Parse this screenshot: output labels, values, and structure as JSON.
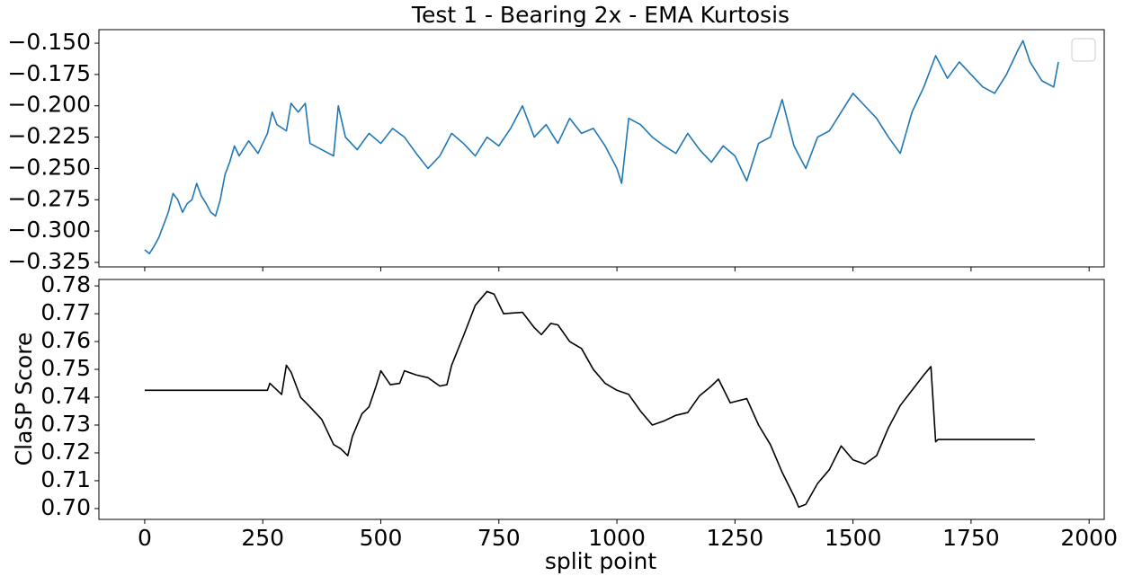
{
  "chart_data": [
    {
      "type": "line",
      "title": "Test 1 - Bearing 2x - EMA Kurtosis",
      "legend": "upper right",
      "sharex": true,
      "x": [
        0,
        10,
        20,
        30,
        40,
        50,
        60,
        70,
        80,
        90,
        100,
        110,
        120,
        130,
        140,
        150,
        160,
        170,
        180,
        190,
        200,
        220,
        240,
        260,
        270,
        280,
        300,
        310,
        325,
        340,
        350,
        375,
        400,
        410,
        425,
        450,
        475,
        500,
        525,
        550,
        575,
        600,
        625,
        650,
        675,
        700,
        725,
        750,
        775,
        800,
        825,
        850,
        875,
        900,
        925,
        950,
        975,
        1000,
        1010,
        1025,
        1050,
        1075,
        1100,
        1125,
        1150,
        1175,
        1200,
        1225,
        1250,
        1275,
        1300,
        1325,
        1350,
        1375,
        1400,
        1425,
        1450,
        1475,
        1500,
        1525,
        1550,
        1575,
        1600,
        1625,
        1650,
        1675,
        1700,
        1725,
        1750,
        1775,
        1800,
        1825,
        1850,
        1860,
        1875,
        1900,
        1925,
        1935
      ],
      "series": [
        {
          "color": "#1f77b4",
          "values": [
            -0.315,
            -0.318,
            -0.312,
            -0.305,
            -0.295,
            -0.285,
            -0.27,
            -0.275,
            -0.285,
            -0.278,
            -0.275,
            -0.262,
            -0.272,
            -0.278,
            -0.285,
            -0.288,
            -0.275,
            -0.255,
            -0.245,
            -0.232,
            -0.24,
            -0.228,
            -0.238,
            -0.222,
            -0.205,
            -0.215,
            -0.22,
            -0.198,
            -0.205,
            -0.198,
            -0.23,
            -0.235,
            -0.24,
            -0.2,
            -0.225,
            -0.235,
            -0.222,
            -0.23,
            -0.218,
            -0.225,
            -0.238,
            -0.25,
            -0.24,
            -0.222,
            -0.23,
            -0.24,
            -0.225,
            -0.232,
            -0.218,
            -0.2,
            -0.225,
            -0.215,
            -0.23,
            -0.21,
            -0.222,
            -0.218,
            -0.232,
            -0.25,
            -0.262,
            -0.21,
            -0.215,
            -0.225,
            -0.232,
            -0.238,
            -0.222,
            -0.235,
            -0.245,
            -0.232,
            -0.24,
            -0.26,
            -0.23,
            -0.225,
            -0.195,
            -0.232,
            -0.25,
            -0.225,
            -0.22,
            -0.205,
            -0.19,
            -0.2,
            -0.21,
            -0.225,
            -0.238,
            -0.205,
            -0.185,
            -0.16,
            -0.178,
            -0.165,
            -0.175,
            -0.185,
            -0.19,
            -0.175,
            -0.155,
            -0.148,
            -0.165,
            -0.18,
            -0.185,
            -0.165
          ]
        }
      ],
      "xlim": [
        -97,
        2032
      ],
      "ylim": [
        -0.3286,
        -0.1392
      ],
      "yticks": [
        {
          "value": -0.15,
          "label": "−0.150"
        },
        {
          "value": -0.175,
          "label": "−0.175"
        },
        {
          "value": -0.2,
          "label": "−0.200"
        },
        {
          "value": -0.225,
          "label": "−0.225"
        },
        {
          "value": -0.25,
          "label": "−0.250"
        },
        {
          "value": -0.275,
          "label": "−0.275"
        },
        {
          "value": -0.3,
          "label": "−0.300"
        },
        {
          "value": -0.325,
          "label": "−0.325"
        }
      ]
    },
    {
      "type": "line",
      "xlabel": "split point",
      "ylabel": "ClaSP Score",
      "x": [
        0,
        260,
        265,
        290,
        300,
        310,
        330,
        350,
        375,
        400,
        415,
        430,
        440,
        460,
        475,
        490,
        500,
        520,
        540,
        550,
        575,
        600,
        625,
        640,
        650,
        675,
        700,
        725,
        740,
        760,
        800,
        825,
        840,
        860,
        875,
        900,
        925,
        950,
        975,
        1000,
        1025,
        1050,
        1075,
        1100,
        1125,
        1150,
        1175,
        1200,
        1215,
        1240,
        1275,
        1300,
        1325,
        1350,
        1375,
        1385,
        1400,
        1425,
        1450,
        1475,
        1500,
        1525,
        1550,
        1575,
        1600,
        1625,
        1650,
        1665,
        1675,
        1680,
        1885
      ],
      "series": [
        {
          "color": "#000000",
          "values": [
            0.7425,
            0.7425,
            0.745,
            0.741,
            0.7515,
            0.749,
            0.74,
            0.7365,
            0.732,
            0.723,
            0.7215,
            0.719,
            0.726,
            0.734,
            0.7365,
            0.744,
            0.7495,
            0.7445,
            0.745,
            0.7495,
            0.748,
            0.747,
            0.744,
            0.7445,
            0.7515,
            0.762,
            0.773,
            0.778,
            0.777,
            0.77,
            0.7705,
            0.765,
            0.7625,
            0.7665,
            0.766,
            0.76,
            0.7575,
            0.75,
            0.745,
            0.7425,
            0.741,
            0.735,
            0.73,
            0.7315,
            0.7335,
            0.7345,
            0.7405,
            0.744,
            0.7465,
            0.738,
            0.7395,
            0.73,
            0.723,
            0.713,
            0.7045,
            0.7005,
            0.7015,
            0.709,
            0.714,
            0.7225,
            0.7175,
            0.716,
            0.719,
            0.729,
            0.737,
            0.7425,
            0.748,
            0.751,
            0.724,
            0.7248,
            0.7248
          ]
        }
      ],
      "xlim": [
        -97,
        2032
      ],
      "ylim": [
        0.6961,
        0.7823
      ],
      "xticks": [
        0,
        250,
        500,
        750,
        1000,
        1250,
        1500,
        1750,
        2000
      ],
      "yticks": [
        {
          "value": 0.7,
          "label": "0.70"
        },
        0.71,
        0.72,
        0.73,
        0.74,
        0.75,
        0.76,
        0.77,
        0.78
      ]
    }
  ]
}
